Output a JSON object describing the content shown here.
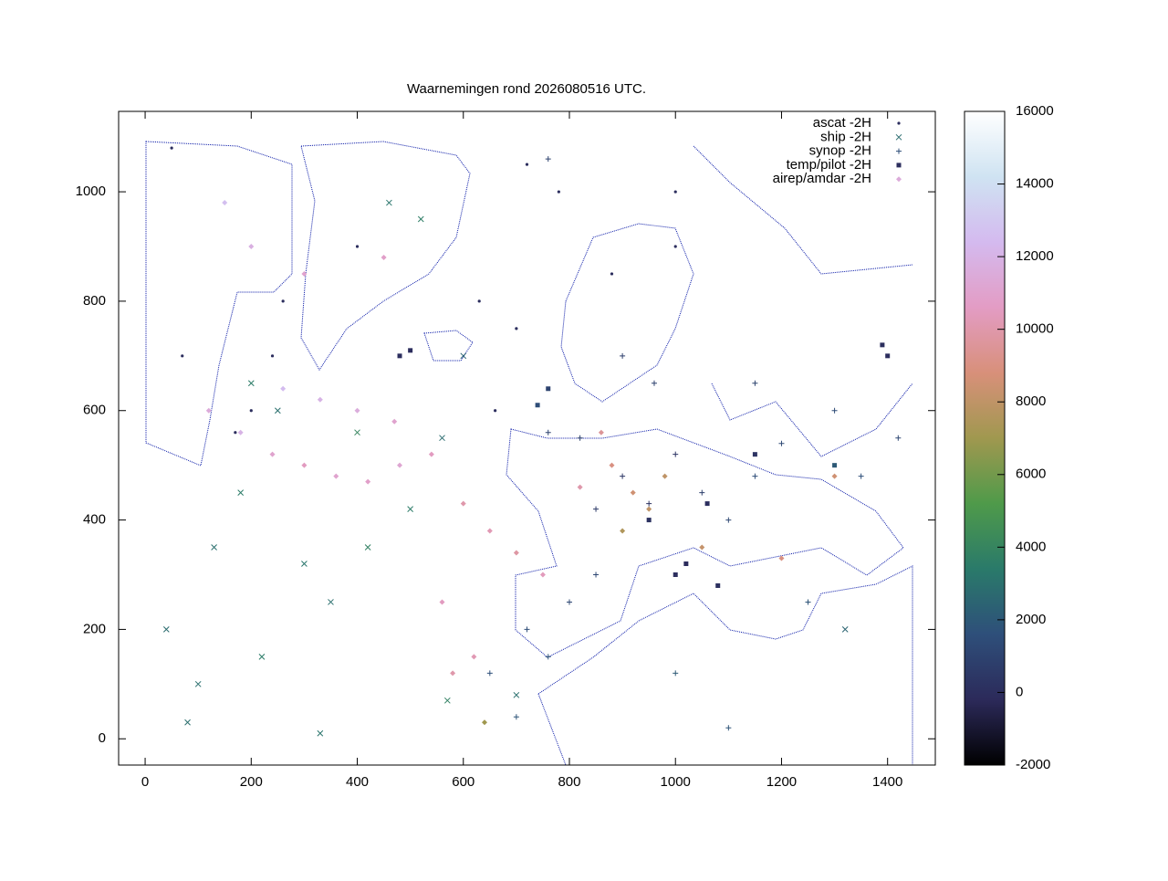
{
  "chart_data": {
    "type": "scatter",
    "title": "Waarnemingen rond 2026080516 UTC.",
    "xlim": [
      -50,
      1490
    ],
    "ylim": [
      -48,
      1147
    ],
    "xticks": [
      0,
      200,
      400,
      600,
      800,
      1000,
      1200,
      1400
    ],
    "yticks": [
      0,
      200,
      400,
      600,
      800,
      1000
    ],
    "legend": "top-right",
    "colorbar": {
      "zlim": [
        -2000,
        16000
      ],
      "zticks": [
        -2000,
        0,
        2000,
        4000,
        6000,
        8000,
        10000,
        12000,
        14000,
        16000
      ],
      "palette": [
        "#000000",
        "#2c2a5a",
        "#2e4f7a",
        "#2a7a6a",
        "#4f9a4a",
        "#a0984f",
        "#d8907a",
        "#e39cc4",
        "#d4baef",
        "#cfe3f2",
        "#ffffff"
      ]
    },
    "series": [
      {
        "name": "ascat -2H",
        "marker": "dot",
        "x": [
          170,
          200,
          240,
          260,
          400,
          720,
          780,
          1000,
          50,
          70,
          660,
          630,
          700,
          1000,
          880
        ],
        "y": [
          560,
          600,
          700,
          800,
          900,
          1050,
          1000,
          900,
          1080,
          700,
          600,
          800,
          750,
          1000,
          850
        ],
        "z": [
          0,
          0,
          0,
          0,
          0,
          0,
          0,
          0,
          0,
          0,
          0,
          0,
          0,
          0,
          0
        ]
      },
      {
        "name": "ship -2H",
        "marker": "cross",
        "x": [
          40,
          100,
          220,
          300,
          350,
          420,
          500,
          560,
          250,
          180,
          400,
          520,
          460,
          600,
          80,
          330,
          700,
          1320,
          200,
          570,
          130
        ],
        "y": [
          200,
          100,
          150,
          320,
          250,
          350,
          420,
          550,
          600,
          450,
          560,
          950,
          980,
          700,
          30,
          10,
          80,
          200,
          650,
          70,
          350
        ],
        "z": [
          2800,
          3000,
          3500,
          3200,
          3000,
          3800,
          3500,
          2800,
          3000,
          3500,
          4000,
          3600,
          3200,
          2500,
          3000,
          3200,
          3000,
          2500,
          3500,
          3800,
          3000
        ]
      },
      {
        "name": "synop -2H",
        "marker": "plus",
        "x": [
          720,
          760,
          800,
          850,
          900,
          950,
          1000,
          1050,
          1100,
          1150,
          1200,
          820,
          760,
          650,
          700,
          1000,
          1100,
          960,
          1300,
          1350,
          900,
          1150,
          850,
          1250,
          760,
          1420
        ],
        "y": [
          200,
          150,
          250,
          420,
          480,
          430,
          520,
          450,
          400,
          480,
          540,
          550,
          560,
          120,
          40,
          120,
          20,
          650,
          600,
          480,
          700,
          650,
          300,
          250,
          1060,
          550
        ],
        "z": [
          1500,
          1800,
          1200,
          600,
          400,
          200,
          300,
          800,
          1200,
          1500,
          1300,
          900,
          1000,
          1600,
          1800,
          2000,
          1800,
          900,
          1400,
          1600,
          800,
          1000,
          1200,
          1800,
          900,
          1200
        ]
      },
      {
        "name": "temp/pilot -2H",
        "marker": "square",
        "x": [
          1000,
          1020,
          1080,
          1400,
          1390,
          480,
          500,
          760,
          740,
          1060,
          950,
          1150,
          1300
        ],
        "y": [
          300,
          320,
          280,
          700,
          720,
          700,
          710,
          640,
          610,
          430,
          400,
          520,
          500
        ],
        "z": [
          0,
          -100,
          100,
          0,
          50,
          0,
          -50,
          1000,
          1500,
          0,
          200,
          300,
          2000
        ]
      },
      {
        "name": "airep/amdar -2H",
        "marker": "diamond",
        "x": [
          120,
          180,
          240,
          300,
          360,
          420,
          480,
          540,
          600,
          650,
          700,
          750,
          820,
          880,
          920,
          950,
          260,
          330,
          400,
          470,
          560,
          620,
          200,
          150,
          900,
          860,
          980,
          1050,
          1300,
          1200,
          300,
          450,
          580,
          640
        ],
        "y": [
          600,
          560,
          520,
          500,
          480,
          470,
          500,
          520,
          430,
          380,
          340,
          300,
          460,
          500,
          450,
          420,
          640,
          620,
          600,
          580,
          250,
          150,
          900,
          980,
          380,
          560,
          480,
          350,
          480,
          330,
          850,
          880,
          120,
          30
        ],
        "z": [
          11500,
          12000,
          11000,
          10500,
          11000,
          10800,
          11200,
          10500,
          10000,
          10200,
          9800,
          10400,
          10000,
          9000,
          8500,
          8000,
          12500,
          12000,
          11600,
          11000,
          10500,
          10200,
          11800,
          12600,
          7500,
          9500,
          8000,
          8200,
          8500,
          9000,
          11000,
          10800,
          10000,
          7000
        ]
      }
    ]
  }
}
